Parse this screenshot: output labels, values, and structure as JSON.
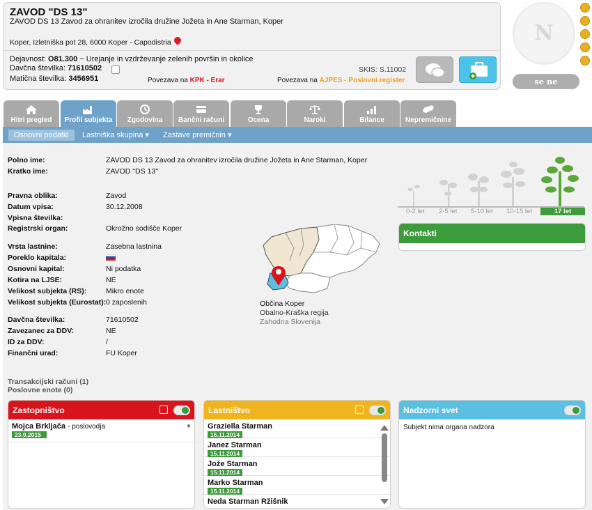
{
  "header": {
    "company_name": "ZAVOD \"DS 13\"",
    "full_name": "ZAVOD DS 13 Zavod za ohranitev izročila družine Jožeta in Ane Starman, Koper",
    "address": "Koper, Izletniška pot 28, 6000 Koper - Capodistria",
    "dejavnost_label": "Dejavnost:",
    "dejavnost_code": "O81.300",
    "dejavnost_text": "~ Urejanje in vzdrževanje zelenih površin in okolice",
    "davcna_label": "Davčna številka:",
    "davcna_value": "71610502",
    "maticna_label": "Matična številka:",
    "maticna_value": "3456951",
    "skis": "SKIS: S.11002",
    "povezava_prefix": "Povezava na",
    "kpk_link": "KPK - Erar",
    "ajpes_link": "AJPES - Poslovni register"
  },
  "rating": {
    "letter": "N",
    "button_label": "se ne izračunava",
    "coins": 5
  },
  "tabs": [
    {
      "label": "Hitri pregled",
      "icon": "home-icon"
    },
    {
      "label": "Profil subjekta",
      "icon": "factory-icon",
      "active": true
    },
    {
      "label": "Zgodovina",
      "icon": "history-icon"
    },
    {
      "label": "Bančni računi",
      "icon": "bank-card-icon"
    },
    {
      "label": "Ocena",
      "icon": "trophy-icon"
    },
    {
      "label": "Naroki",
      "icon": "scales-icon"
    },
    {
      "label": "Bilance",
      "icon": "chart-icon"
    },
    {
      "label": "Nepremičnine",
      "icon": "slovenia-map-icon"
    }
  ],
  "subtabs": {
    "osnovni": "Osnovni podatki",
    "lastniska": "Lastniška skupina",
    "zastave": "Zastave premičnin"
  },
  "profile": {
    "polno_ime_label": "Polno ime:",
    "polno_ime": "ZAVOD DS 13 Zavod za ohranitev izročila družine Jožeta in Ane Starman, Koper",
    "kratko_ime_label": "Kratko ime:",
    "kratko_ime": "ZAVOD \"DS 13\"",
    "pravna_oblika_label": "Pravna oblika:",
    "pravna_oblika": "Zavod",
    "datum_vpisa_label": "Datum vpisa:",
    "datum_vpisa": "30.12.2008",
    "vpisna_label": "Vpisna številka:",
    "registrski_label": "Registrski organ:",
    "registrski": "Okrožno sodišče Koper",
    "vrsta_label": "Vrsta lastnine:",
    "vrsta": "Zasebna lastnina",
    "poreklo_label": "Poreklo kapitala:",
    "osnovni_label": "Osnovni kapital:",
    "osnovni": "Ni podatka",
    "kotira_label": "Kotira na LJSE:",
    "kotira": "NE",
    "velikost_rs_label": "Velikost subjekta (RS):",
    "velikost_rs": "Mikro enote",
    "velikost_eu_label": "Velikost subjekta (Eurostat):",
    "velikost_eu": "0 zaposlenih",
    "davcna_label": "Davčna številka:",
    "davcna": "71610502",
    "zavezanec_label": "Zavezanec za DDV:",
    "zavezanec": "NE",
    "id_ddv_label": "ID za DDV:",
    "id_ddv": "/",
    "financni_label": "Finančni urad:",
    "financni": "FU Koper",
    "transakcijski": "Transakcijski računi (1)",
    "poslovne": "Poslovne enote (0)"
  },
  "age": {
    "labels": [
      "0-2 let",
      "2-5 let",
      "5-10 let",
      "10-15 let",
      "17 let"
    ],
    "active_index": 4
  },
  "kontakti": {
    "title": "Kontakti"
  },
  "location": {
    "obcina": "Občina Koper",
    "regija": "Obalno-Kraška regija",
    "zahod": "Zahodna Slovenija"
  },
  "zastopnistvo": {
    "title": "Zastopništvo",
    "color": "#d8141c",
    "persons": [
      {
        "name": "Mojca Brkljača",
        "role": "- poslovodja",
        "date": "23.9.2015"
      }
    ]
  },
  "lastnistvo": {
    "title": "Lastništvo",
    "color": "#f0b41f",
    "persons": [
      {
        "name": "Graziella Starman",
        "date": "15.11.2014"
      },
      {
        "name": "Janez Starman",
        "date": "15.11.2014"
      },
      {
        "name": "Jože Starman",
        "date": "15.11.2014"
      },
      {
        "name": "Marko Starman",
        "date": "15.11.2014"
      },
      {
        "name": "Neda Starman Ržišnik",
        "date": ""
      }
    ]
  },
  "nadzorni": {
    "title": "Nadzorni svet",
    "color": "#5bbfe1",
    "text": "Subjekt nima organa nadzora"
  }
}
